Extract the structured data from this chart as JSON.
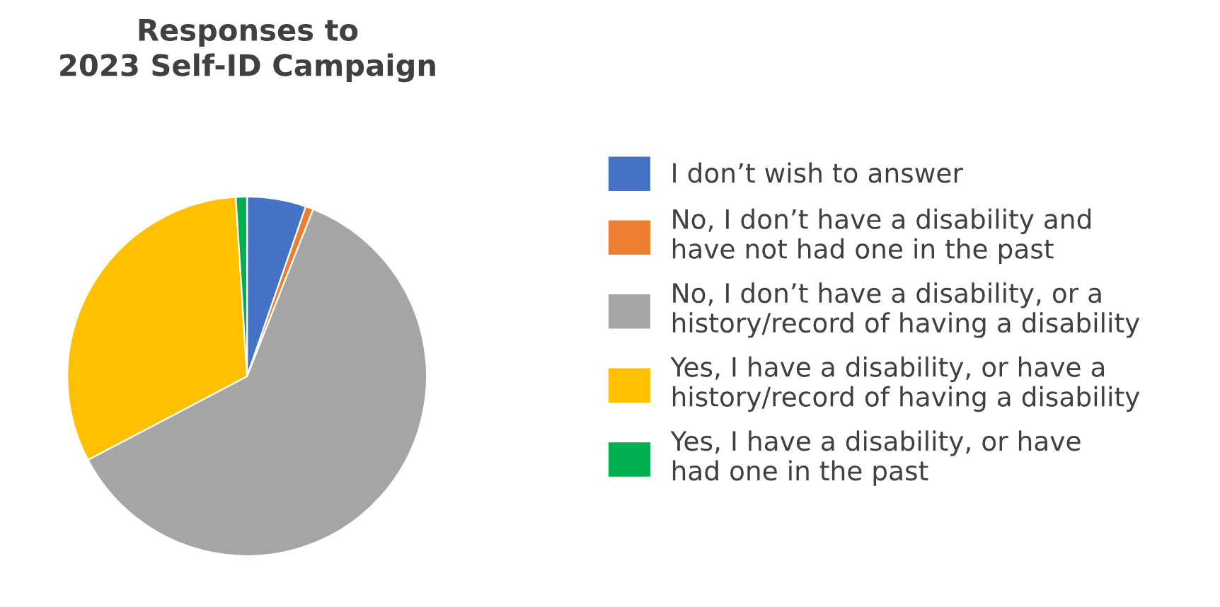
{
  "chart_data": {
    "type": "pie",
    "title": "Responses to\n2023 Self-ID Campaign",
    "categories": [
      "I don’t wish to answer",
      "No, I don’t have a disability and\nhave not had one in the past",
      "No, I don’t have a disability, or a\nhistory/record of having a disability",
      "Yes, I have a disability, or have a\nhistory/record of having a disability",
      "Yes, I have a disability, or have\nhad one in the past"
    ],
    "values": [
      5.3,
      0.7,
      61.3,
      31.7,
      1.0
    ],
    "colors": [
      "#4472c4",
      "#ed7d31",
      "#a5a5a5",
      "#ffc000",
      "#00b050"
    ],
    "legend": "right"
  }
}
